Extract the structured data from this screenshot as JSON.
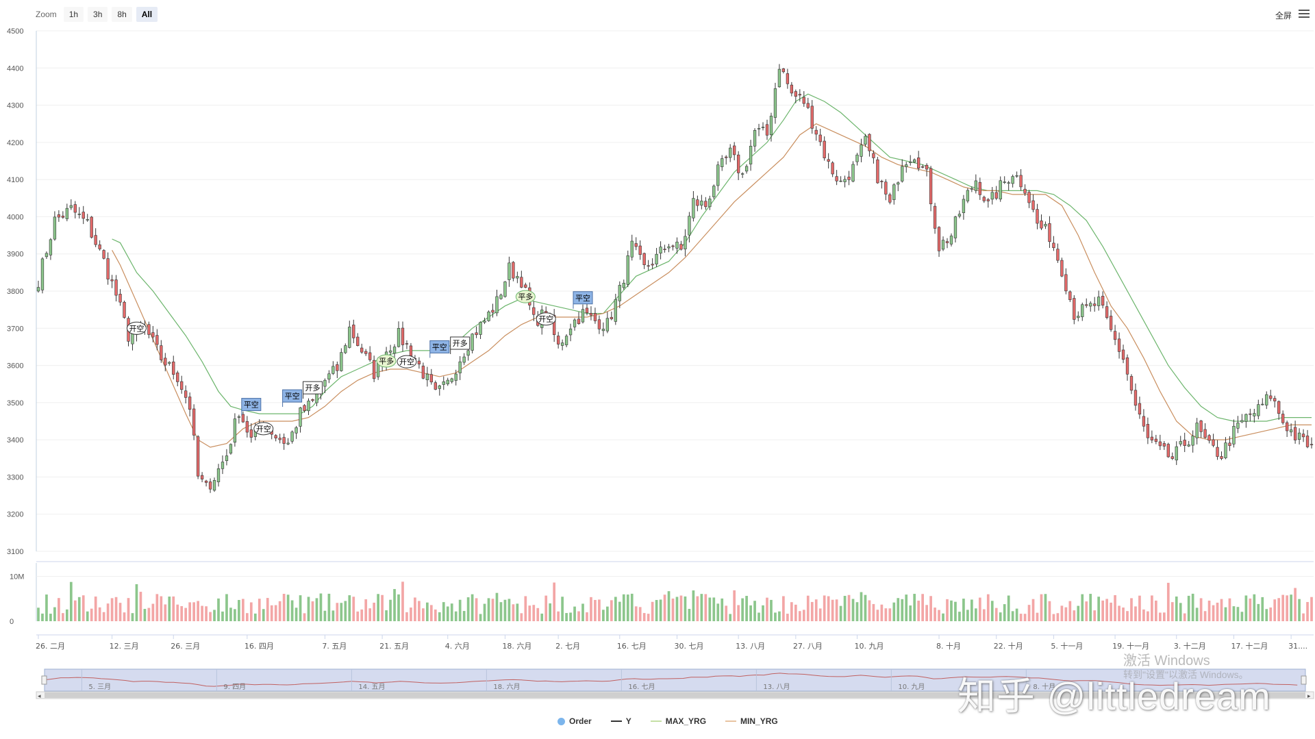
{
  "toolbar": {
    "zoom_label": "Zoom",
    "zoom_buttons": [
      "1h",
      "3h",
      "8h",
      "All"
    ],
    "active_zoom": "All",
    "fullscreen_label": "全屏"
  },
  "overlay": {
    "activate_windows": "激活 Windows",
    "activate_hint": "转到\"设置\"以激活 Windows。",
    "credit": "知乎 @littledream"
  },
  "legend": [
    {
      "name": "Order",
      "color": "#7cb5ec",
      "shape": "dot"
    },
    {
      "name": "Y",
      "color": "#333333",
      "shape": "line"
    },
    {
      "name": "MAX_YRG",
      "color": "#c5e0a5",
      "shape": "line"
    },
    {
      "name": "MIN_YRG",
      "color": "#e8c3a0",
      "shape": "line"
    }
  ],
  "colors": {
    "up": "#8cc68c",
    "down": "#e46a6a",
    "max_line": "#6cb56c",
    "min_line": "#c98e5e",
    "flag_blue": "#8eb4e6",
    "navigator_fill": "#d5dbef"
  },
  "chart_data": {
    "type": "candlestick",
    "ylim": [
      3100,
      4500
    ],
    "yticks": [
      3100,
      3200,
      3300,
      3400,
      3500,
      3600,
      3700,
      3800,
      3900,
      4000,
      4100,
      4200,
      4300,
      4400,
      4500
    ],
    "volume_ticks": [
      "0",
      "10M"
    ],
    "volume_range": [
      0,
      13000000
    ],
    "n_bars": 312,
    "xlabels": [
      {
        "i": 0,
        "t": "26. 二月"
      },
      {
        "i": 18,
        "t": "12. 三月"
      },
      {
        "i": 33,
        "t": "26. 三月"
      },
      {
        "i": 51,
        "t": "16. 四月"
      },
      {
        "i": 70,
        "t": "7. 五月"
      },
      {
        "i": 84,
        "t": "21. 五月"
      },
      {
        "i": 100,
        "t": "4. 六月"
      },
      {
        "i": 114,
        "t": "18. 六月"
      },
      {
        "i": 127,
        "t": "2. 七月"
      },
      {
        "i": 142,
        "t": "16. 七月"
      },
      {
        "i": 156,
        "t": "30. 七月"
      },
      {
        "i": 171,
        "t": "13. 八月"
      },
      {
        "i": 185,
        "t": "27. 八月"
      },
      {
        "i": 200,
        "t": "10. 九月"
      },
      {
        "i": 220,
        "t": "8. 十月"
      },
      {
        "i": 234,
        "t": "22. 十月"
      },
      {
        "i": 248,
        "t": "5. 十一月"
      },
      {
        "i": 263,
        "t": "19. 十一月"
      },
      {
        "i": 278,
        "t": "3. 十二月"
      },
      {
        "i": 292,
        "t": "17. 十二月"
      },
      {
        "i": 306,
        "t": "31...."
      }
    ],
    "navigator_labels": [
      "5. 三月",
      "9. 四月",
      "14. 五月",
      "18. 六月",
      "16. 七月",
      "13. 八月",
      "10. 九月",
      "8. 十月"
    ],
    "anchors": [
      [
        0,
        3830
      ],
      [
        4,
        3990
      ],
      [
        8,
        4020
      ],
      [
        12,
        3980
      ],
      [
        16,
        3880
      ],
      [
        19,
        3790
      ],
      [
        22,
        3680
      ],
      [
        26,
        3700
      ],
      [
        30,
        3620
      ],
      [
        34,
        3570
      ],
      [
        37,
        3490
      ],
      [
        39,
        3300
      ],
      [
        41,
        3270
      ],
      [
        43,
        3300
      ],
      [
        46,
        3360
      ],
      [
        49,
        3480
      ],
      [
        52,
        3400
      ],
      [
        55,
        3450
      ],
      [
        58,
        3410
      ],
      [
        61,
        3390
      ],
      [
        64,
        3470
      ],
      [
        67,
        3500
      ],
      [
        70,
        3560
      ],
      [
        73,
        3590
      ],
      [
        76,
        3700
      ],
      [
        79,
        3640
      ],
      [
        82,
        3580
      ],
      [
        85,
        3640
      ],
      [
        88,
        3680
      ],
      [
        91,
        3640
      ],
      [
        94,
        3580
      ],
      [
        97,
        3520
      ],
      [
        100,
        3550
      ],
      [
        103,
        3620
      ],
      [
        106,
        3680
      ],
      [
        109,
        3720
      ],
      [
        112,
        3770
      ],
      [
        115,
        3860
      ],
      [
        118,
        3830
      ],
      [
        121,
        3720
      ],
      [
        124,
        3740
      ],
      [
        127,
        3650
      ],
      [
        130,
        3710
      ],
      [
        133,
        3740
      ],
      [
        136,
        3720
      ],
      [
        139,
        3710
      ],
      [
        142,
        3800
      ],
      [
        145,
        3920
      ],
      [
        148,
        3860
      ],
      [
        151,
        3890
      ],
      [
        154,
        3930
      ],
      [
        157,
        3910
      ],
      [
        160,
        4040
      ],
      [
        163,
        4030
      ],
      [
        166,
        4120
      ],
      [
        169,
        4170
      ],
      [
        172,
        4110
      ],
      [
        175,
        4230
      ],
      [
        178,
        4220
      ],
      [
        181,
        4410
      ],
      [
        184,
        4330
      ],
      [
        187,
        4310
      ],
      [
        190,
        4230
      ],
      [
        193,
        4140
      ],
      [
        196,
        4090
      ],
      [
        199,
        4130
      ],
      [
        202,
        4200
      ],
      [
        205,
        4110
      ],
      [
        208,
        4030
      ],
      [
        211,
        4150
      ],
      [
        214,
        4170
      ],
      [
        217,
        4110
      ],
      [
        220,
        3920
      ],
      [
        223,
        3950
      ],
      [
        226,
        4040
      ],
      [
        229,
        4100
      ],
      [
        232,
        4030
      ],
      [
        235,
        4080
      ],
      [
        238,
        4120
      ],
      [
        241,
        4080
      ],
      [
        244,
        3980
      ],
      [
        247,
        3950
      ],
      [
        250,
        3860
      ],
      [
        253,
        3740
      ],
      [
        256,
        3750
      ],
      [
        259,
        3770
      ],
      [
        262,
        3690
      ],
      [
        265,
        3620
      ],
      [
        268,
        3490
      ],
      [
        271,
        3400
      ],
      [
        274,
        3370
      ],
      [
        277,
        3350
      ],
      [
        280,
        3390
      ],
      [
        283,
        3430
      ],
      [
        286,
        3380
      ],
      [
        289,
        3360
      ],
      [
        292,
        3420
      ],
      [
        295,
        3460
      ],
      [
        298,
        3480
      ],
      [
        301,
        3520
      ],
      [
        304,
        3450
      ],
      [
        307,
        3410
      ],
      [
        311,
        3380
      ]
    ],
    "series": [
      {
        "name": "Y",
        "type": "candlestick"
      },
      {
        "name": "MAX_YRG",
        "type": "line",
        "values": [
          [
            18,
            3940
          ],
          [
            20,
            3930
          ],
          [
            24,
            3850
          ],
          [
            28,
            3800
          ],
          [
            32,
            3740
          ],
          [
            36,
            3680
          ],
          [
            40,
            3610
          ],
          [
            44,
            3530
          ],
          [
            47,
            3490
          ],
          [
            50,
            3480
          ],
          [
            54,
            3470
          ],
          [
            58,
            3470
          ],
          [
            61,
            3470
          ],
          [
            64,
            3470
          ],
          [
            67,
            3490
          ],
          [
            70,
            3530
          ],
          [
            74,
            3570
          ],
          [
            78,
            3590
          ],
          [
            82,
            3610
          ],
          [
            86,
            3630
          ],
          [
            90,
            3640
          ],
          [
            94,
            3640
          ],
          [
            98,
            3640
          ],
          [
            102,
            3660
          ],
          [
            106,
            3700
          ],
          [
            110,
            3730
          ],
          [
            114,
            3760
          ],
          [
            118,
            3780
          ],
          [
            122,
            3770
          ],
          [
            126,
            3760
          ],
          [
            130,
            3750
          ],
          [
            134,
            3740
          ],
          [
            138,
            3740
          ],
          [
            142,
            3790
          ],
          [
            146,
            3840
          ],
          [
            150,
            3860
          ],
          [
            154,
            3880
          ],
          [
            158,
            3930
          ],
          [
            162,
            4000
          ],
          [
            166,
            4060
          ],
          [
            170,
            4120
          ],
          [
            174,
            4160
          ],
          [
            178,
            4200
          ],
          [
            182,
            4260
          ],
          [
            185,
            4310
          ],
          [
            188,
            4330
          ],
          [
            192,
            4310
          ],
          [
            196,
            4280
          ],
          [
            200,
            4240
          ],
          [
            204,
            4200
          ],
          [
            208,
            4160
          ],
          [
            212,
            4150
          ],
          [
            216,
            4140
          ],
          [
            220,
            4120
          ],
          [
            224,
            4100
          ],
          [
            228,
            4080
          ],
          [
            232,
            4070
          ],
          [
            236,
            4070
          ],
          [
            240,
            4070
          ],
          [
            244,
            4070
          ],
          [
            248,
            4060
          ],
          [
            252,
            4030
          ],
          [
            256,
            3990
          ],
          [
            260,
            3920
          ],
          [
            264,
            3840
          ],
          [
            268,
            3760
          ],
          [
            272,
            3680
          ],
          [
            276,
            3600
          ],
          [
            280,
            3540
          ],
          [
            284,
            3490
          ],
          [
            288,
            3460
          ],
          [
            292,
            3450
          ],
          [
            296,
            3450
          ],
          [
            300,
            3450
          ],
          [
            304,
            3460
          ],
          [
            308,
            3460
          ],
          [
            311,
            3460
          ]
        ]
      },
      {
        "name": "MIN_YRG",
        "type": "line",
        "values": [
          [
            18,
            3910
          ],
          [
            20,
            3870
          ],
          [
            24,
            3770
          ],
          [
            28,
            3670
          ],
          [
            32,
            3570
          ],
          [
            36,
            3470
          ],
          [
            39,
            3400
          ],
          [
            42,
            3380
          ],
          [
            46,
            3390
          ],
          [
            50,
            3430
          ],
          [
            54,
            3450
          ],
          [
            58,
            3450
          ],
          [
            62,
            3450
          ],
          [
            66,
            3460
          ],
          [
            70,
            3490
          ],
          [
            74,
            3530
          ],
          [
            78,
            3560
          ],
          [
            82,
            3580
          ],
          [
            86,
            3590
          ],
          [
            90,
            3590
          ],
          [
            94,
            3580
          ],
          [
            98,
            3570
          ],
          [
            102,
            3580
          ],
          [
            106,
            3610
          ],
          [
            110,
            3640
          ],
          [
            114,
            3680
          ],
          [
            118,
            3710
          ],
          [
            122,
            3730
          ],
          [
            126,
            3730
          ],
          [
            130,
            3730
          ],
          [
            134,
            3730
          ],
          [
            138,
            3740
          ],
          [
            142,
            3760
          ],
          [
            146,
            3790
          ],
          [
            150,
            3820
          ],
          [
            154,
            3850
          ],
          [
            158,
            3890
          ],
          [
            162,
            3940
          ],
          [
            166,
            3990
          ],
          [
            170,
            4040
          ],
          [
            174,
            4080
          ],
          [
            178,
            4120
          ],
          [
            182,
            4160
          ],
          [
            186,
            4220
          ],
          [
            190,
            4250
          ],
          [
            194,
            4230
          ],
          [
            198,
            4210
          ],
          [
            202,
            4190
          ],
          [
            206,
            4160
          ],
          [
            210,
            4140
          ],
          [
            214,
            4130
          ],
          [
            218,
            4120
          ],
          [
            222,
            4100
          ],
          [
            226,
            4080
          ],
          [
            230,
            4070
          ],
          [
            234,
            4070
          ],
          [
            238,
            4060
          ],
          [
            242,
            4060
          ],
          [
            246,
            4060
          ],
          [
            250,
            4030
          ],
          [
            254,
            3950
          ],
          [
            258,
            3850
          ],
          [
            262,
            3760
          ],
          [
            266,
            3700
          ],
          [
            270,
            3620
          ],
          [
            274,
            3530
          ],
          [
            278,
            3450
          ],
          [
            282,
            3410
          ],
          [
            286,
            3400
          ],
          [
            290,
            3400
          ],
          [
            294,
            3410
          ],
          [
            298,
            3420
          ],
          [
            302,
            3430
          ],
          [
            306,
            3440
          ],
          [
            311,
            3440
          ]
        ]
      }
    ],
    "markers": [
      {
        "i": 24,
        "price": 3700,
        "label": "开空",
        "shape": "circle"
      },
      {
        "i": 52,
        "price": 3495,
        "label": "平空",
        "shape": "flag-blue"
      },
      {
        "i": 55,
        "price": 3430,
        "label": "开空",
        "shape": "circle"
      },
      {
        "i": 62,
        "price": 3518,
        "label": "平空",
        "shape": "flag-blue"
      },
      {
        "i": 67,
        "price": 3540,
        "label": "开多",
        "shape": "flag-white"
      },
      {
        "i": 85,
        "price": 3612,
        "label": "平多",
        "shape": "circle-green"
      },
      {
        "i": 90,
        "price": 3610,
        "label": "开空",
        "shape": "circle"
      },
      {
        "i": 98,
        "price": 3650,
        "label": "平空",
        "shape": "flag-blue"
      },
      {
        "i": 103,
        "price": 3660,
        "label": "开多",
        "shape": "flag-white"
      },
      {
        "i": 119,
        "price": 3785,
        "label": "平多",
        "shape": "circle-green"
      },
      {
        "i": 124,
        "price": 3725,
        "label": "开空",
        "shape": "circle"
      },
      {
        "i": 133,
        "price": 3782,
        "label": "平空",
        "shape": "flag-blue"
      }
    ]
  }
}
